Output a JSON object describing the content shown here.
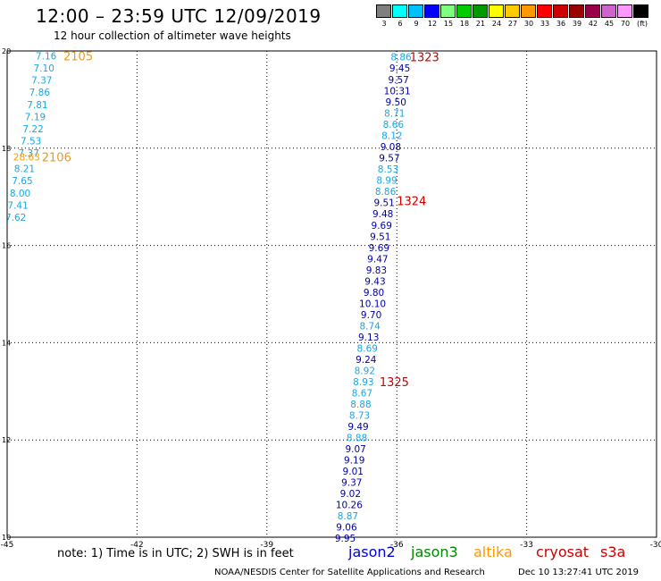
{
  "header": {
    "title": "12:00 – 23:59 UTC 12/09/2019",
    "subtitle": "12 hour collection of altimeter wave heights"
  },
  "legend": {
    "unit": "(ft)",
    "items": [
      {
        "label": "3",
        "color": "#7f7f7f"
      },
      {
        "label": "6",
        "color": "#00ffff"
      },
      {
        "label": "9",
        "color": "#00bfff"
      },
      {
        "label": "12",
        "color": "#0000ff"
      },
      {
        "label": "15",
        "color": "#7fff7f"
      },
      {
        "label": "18",
        "color": "#00cc00"
      },
      {
        "label": "21",
        "color": "#009900"
      },
      {
        "label": "24",
        "color": "#ffff00"
      },
      {
        "label": "27",
        "color": "#ffcc00"
      },
      {
        "label": "30",
        "color": "#ff9900"
      },
      {
        "label": "33",
        "color": "#ff0000"
      },
      {
        "label": "36",
        "color": "#cc0000"
      },
      {
        "label": "39",
        "color": "#990000"
      },
      {
        "label": "42",
        "color": "#99004c"
      },
      {
        "label": "45",
        "color": "#cc66cc"
      },
      {
        "label": "70",
        "color": "#ff99ff"
      },
      {
        "label": "",
        "color": "#000000"
      }
    ]
  },
  "map": {
    "lon_range": [
      -45,
      -30
    ],
    "lat_range": [
      10,
      20
    ],
    "x_ticks": [
      "-45",
      "-42",
      "-39",
      "-36",
      "-33",
      "-30"
    ],
    "y_ticks": [
      "20",
      "18",
      "16",
      "14",
      "12",
      "10"
    ],
    "grid_color": "#000000"
  },
  "colors": {
    "jason2": "#0000cc",
    "jason3": "#008800",
    "altika": "#ff9900",
    "cryosat": "#cc0000",
    "s3a": "#cc0000",
    "light_swh": "#1ba6e0",
    "dark_swh": "#0000aa",
    "orange_swh": "#ff9900"
  },
  "tracks": [
    {
      "id": "left",
      "labels": [
        {
          "text": "2105",
          "lon": -43.7,
          "lat": 19.9,
          "color": "#e89a1c"
        },
        {
          "text": "2106",
          "lon": -44.2,
          "lat": 17.82,
          "color": "#e89a1c"
        }
      ],
      "points": [
        {
          "v": "7.16",
          "lon": -44.1,
          "lat": 19.9,
          "c": "light"
        },
        {
          "v": "7.10",
          "lon": -44.15,
          "lat": 19.65,
          "c": "light"
        },
        {
          "v": "7.37",
          "lon": -44.2,
          "lat": 19.4,
          "c": "light"
        },
        {
          "v": "7.86",
          "lon": -44.25,
          "lat": 19.15,
          "c": "light"
        },
        {
          "v": "7.81",
          "lon": -44.3,
          "lat": 18.9,
          "c": "light"
        },
        {
          "v": "7.19",
          "lon": -44.35,
          "lat": 18.65,
          "c": "light"
        },
        {
          "v": "7.22",
          "lon": -44.4,
          "lat": 18.4,
          "c": "light"
        },
        {
          "v": "7.53",
          "lon": -44.45,
          "lat": 18.15,
          "c": "light"
        },
        {
          "v": "7.37",
          "lon": -44.5,
          "lat": 17.9,
          "c": "light"
        },
        {
          "v": "28.63",
          "lon": -44.55,
          "lat": 17.82,
          "c": "orange"
        },
        {
          "v": "8.21",
          "lon": -44.6,
          "lat": 17.58,
          "c": "light"
        },
        {
          "v": "7.65",
          "lon": -44.65,
          "lat": 17.33,
          "c": "light"
        },
        {
          "v": "8.00",
          "lon": -44.7,
          "lat": 17.08,
          "c": "light"
        },
        {
          "v": "7.41",
          "lon": -44.75,
          "lat": 16.83,
          "c": "light"
        },
        {
          "v": "7.62",
          "lon": -44.8,
          "lat": 16.58,
          "c": "light"
        }
      ]
    },
    {
      "id": "right",
      "labels": [
        {
          "text": "1323",
          "lon": -35.7,
          "lat": 19.88,
          "color": "#cc0000"
        },
        {
          "text": "1324",
          "lon": -36.0,
          "lat": 16.92,
          "color": "#cc0000"
        },
        {
          "text": "1325",
          "lon": -36.4,
          "lat": 13.2,
          "color": "#cc0000"
        }
      ],
      "points": [
        {
          "v": "8.86",
          "lon": -35.9,
          "lat": 19.88,
          "c": "light"
        },
        {
          "v": "9.45",
          "lon": -35.93,
          "lat": 19.65,
          "c": "dark"
        },
        {
          "v": "9.57",
          "lon": -35.96,
          "lat": 19.41,
          "c": "dark"
        },
        {
          "v": "10.31",
          "lon": -35.99,
          "lat": 19.18,
          "c": "dark"
        },
        {
          "v": "9.50",
          "lon": -36.02,
          "lat": 18.95,
          "c": "dark"
        },
        {
          "v": "8.71",
          "lon": -36.05,
          "lat": 18.72,
          "c": "light"
        },
        {
          "v": "8.66",
          "lon": -36.08,
          "lat": 18.49,
          "c": "light"
        },
        {
          "v": "8.12",
          "lon": -36.11,
          "lat": 18.26,
          "c": "light"
        },
        {
          "v": "9.08",
          "lon": -36.14,
          "lat": 18.03,
          "c": "dark"
        },
        {
          "v": "9.57",
          "lon": -36.17,
          "lat": 17.8,
          "c": "dark"
        },
        {
          "v": "8.53",
          "lon": -36.2,
          "lat": 17.57,
          "c": "light"
        },
        {
          "v": "8.99",
          "lon": -36.23,
          "lat": 17.34,
          "c": "light"
        },
        {
          "v": "8.86",
          "lon": -36.26,
          "lat": 17.11,
          "c": "light"
        },
        {
          "v": "9.51",
          "lon": -36.29,
          "lat": 16.88,
          "c": "dark"
        },
        {
          "v": "9.48",
          "lon": -36.32,
          "lat": 16.65,
          "c": "dark"
        },
        {
          "v": "9.69",
          "lon": -36.35,
          "lat": 16.42,
          "c": "dark"
        },
        {
          "v": "9.51",
          "lon": -36.38,
          "lat": 16.19,
          "c": "dark"
        },
        {
          "v": "9.69",
          "lon": -36.41,
          "lat": 15.96,
          "c": "dark"
        },
        {
          "v": "9.47",
          "lon": -36.44,
          "lat": 15.73,
          "c": "dark"
        },
        {
          "v": "9.83",
          "lon": -36.47,
          "lat": 15.5,
          "c": "dark"
        },
        {
          "v": "9.43",
          "lon": -36.5,
          "lat": 15.27,
          "c": "dark"
        },
        {
          "v": "9.80",
          "lon": -36.53,
          "lat": 15.04,
          "c": "dark"
        },
        {
          "v": "10.10",
          "lon": -36.56,
          "lat": 14.81,
          "c": "dark"
        },
        {
          "v": "9.70",
          "lon": -36.59,
          "lat": 14.58,
          "c": "dark"
        },
        {
          "v": "8.74",
          "lon": -36.62,
          "lat": 14.35,
          "c": "light"
        },
        {
          "v": "9.13",
          "lon": -36.65,
          "lat": 14.12,
          "c": "dark"
        },
        {
          "v": "8.69",
          "lon": -36.68,
          "lat": 13.89,
          "c": "light"
        },
        {
          "v": "9.24",
          "lon": -36.71,
          "lat": 13.66,
          "c": "dark"
        },
        {
          "v": "8.92",
          "lon": -36.74,
          "lat": 13.43,
          "c": "light"
        },
        {
          "v": "8.93",
          "lon": -36.77,
          "lat": 13.2,
          "c": "light"
        },
        {
          "v": "8.67",
          "lon": -36.8,
          "lat": 12.97,
          "c": "light"
        },
        {
          "v": "8.88",
          "lon": -36.83,
          "lat": 12.74,
          "c": "light"
        },
        {
          "v": "8.73",
          "lon": -36.86,
          "lat": 12.51,
          "c": "light"
        },
        {
          "v": "9.49",
          "lon": -36.89,
          "lat": 12.28,
          "c": "dark"
        },
        {
          "v": "8.88",
          "lon": -36.92,
          "lat": 12.05,
          "c": "light"
        },
        {
          "v": "9.07",
          "lon": -36.95,
          "lat": 11.82,
          "c": "dark"
        },
        {
          "v": "9.19",
          "lon": -36.98,
          "lat": 11.59,
          "c": "dark"
        },
        {
          "v": "9.01",
          "lon": -37.01,
          "lat": 11.36,
          "c": "dark"
        },
        {
          "v": "9.37",
          "lon": -37.04,
          "lat": 11.13,
          "c": "dark"
        },
        {
          "v": "9.02",
          "lon": -37.07,
          "lat": 10.9,
          "c": "dark"
        },
        {
          "v": "10.26",
          "lon": -37.1,
          "lat": 10.67,
          "c": "dark"
        },
        {
          "v": "8.87",
          "lon": -37.13,
          "lat": 10.44,
          "c": "light"
        },
        {
          "v": "9.06",
          "lon": -37.16,
          "lat": 10.21,
          "c": "dark"
        },
        {
          "v": "9.95",
          "lon": -37.19,
          "lat": 9.98,
          "c": "dark"
        }
      ]
    }
  ],
  "footer": {
    "note": "note: 1) Time is in UTC; 2) SWH is in feet",
    "satellites": {
      "jason2": "jason2",
      "jason3": "jason3",
      "altika": "altika",
      "cryosat": "cryosat",
      "s3a": "s3a"
    },
    "credit": "NOAA/NESDIS Center for Satellite Applications and Research",
    "timestamp": "Dec 10 13:27:41 UTC 2019"
  }
}
